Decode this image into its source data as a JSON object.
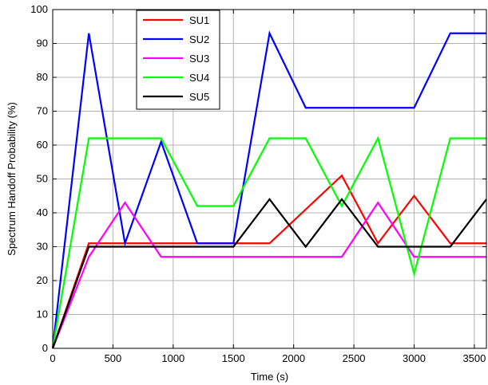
{
  "chart_data": {
    "type": "line",
    "title": "",
    "xlabel": "Time (s)",
    "ylabel": "Spectrum Handoff Probability (%)",
    "xlim": [
      0,
      3600
    ],
    "ylim": [
      0,
      100
    ],
    "xticks": [
      0,
      500,
      1000,
      1500,
      2000,
      2500,
      3000,
      3500
    ],
    "yticks": [
      0,
      10,
      20,
      30,
      40,
      50,
      60,
      70,
      80,
      90,
      100
    ],
    "grid": true,
    "legend_position": "top-center",
    "series": [
      {
        "name": "SU1",
        "color": "#ff0000",
        "x": [
          0,
          300,
          600,
          900,
          1200,
          1500,
          1800,
          2100,
          2400,
          2700,
          3000,
          3300,
          3600
        ],
        "values": [
          0,
          31,
          31,
          31,
          31,
          31,
          31,
          41,
          51,
          31,
          45,
          31,
          31
        ]
      },
      {
        "name": "SU2",
        "color": "#0000ff",
        "x": [
          0,
          300,
          600,
          900,
          1200,
          1500,
          1800,
          2100,
          2400,
          2700,
          3000,
          3300,
          3600
        ],
        "values": [
          0,
          93,
          31,
          61,
          31,
          31,
          93,
          71,
          71,
          71,
          71,
          93,
          93
        ]
      },
      {
        "name": "SU3",
        "color": "#ff00ff",
        "x": [
          0,
          300,
          600,
          900,
          1200,
          1500,
          1800,
          2100,
          2400,
          2700,
          3000,
          3300,
          3600
        ],
        "values": [
          0,
          27,
          43,
          27,
          27,
          27,
          27,
          27,
          27,
          43,
          27,
          27,
          27
        ]
      },
      {
        "name": "SU4",
        "color": "#00ff00",
        "x": [
          0,
          300,
          600,
          900,
          1200,
          1500,
          1800,
          2100,
          2400,
          2700,
          3000,
          3300,
          3600
        ],
        "values": [
          0,
          62,
          62,
          62,
          42,
          42,
          62,
          62,
          42,
          62,
          22,
          62,
          62
        ]
      },
      {
        "name": "SU5",
        "color": "#000000",
        "x": [
          0,
          300,
          600,
          900,
          1200,
          1500,
          1800,
          2100,
          2400,
          2700,
          3000,
          3300,
          3600
        ],
        "values": [
          0,
          30,
          30,
          30,
          30,
          30,
          44,
          30,
          44,
          30,
          30,
          30,
          44
        ]
      }
    ]
  }
}
